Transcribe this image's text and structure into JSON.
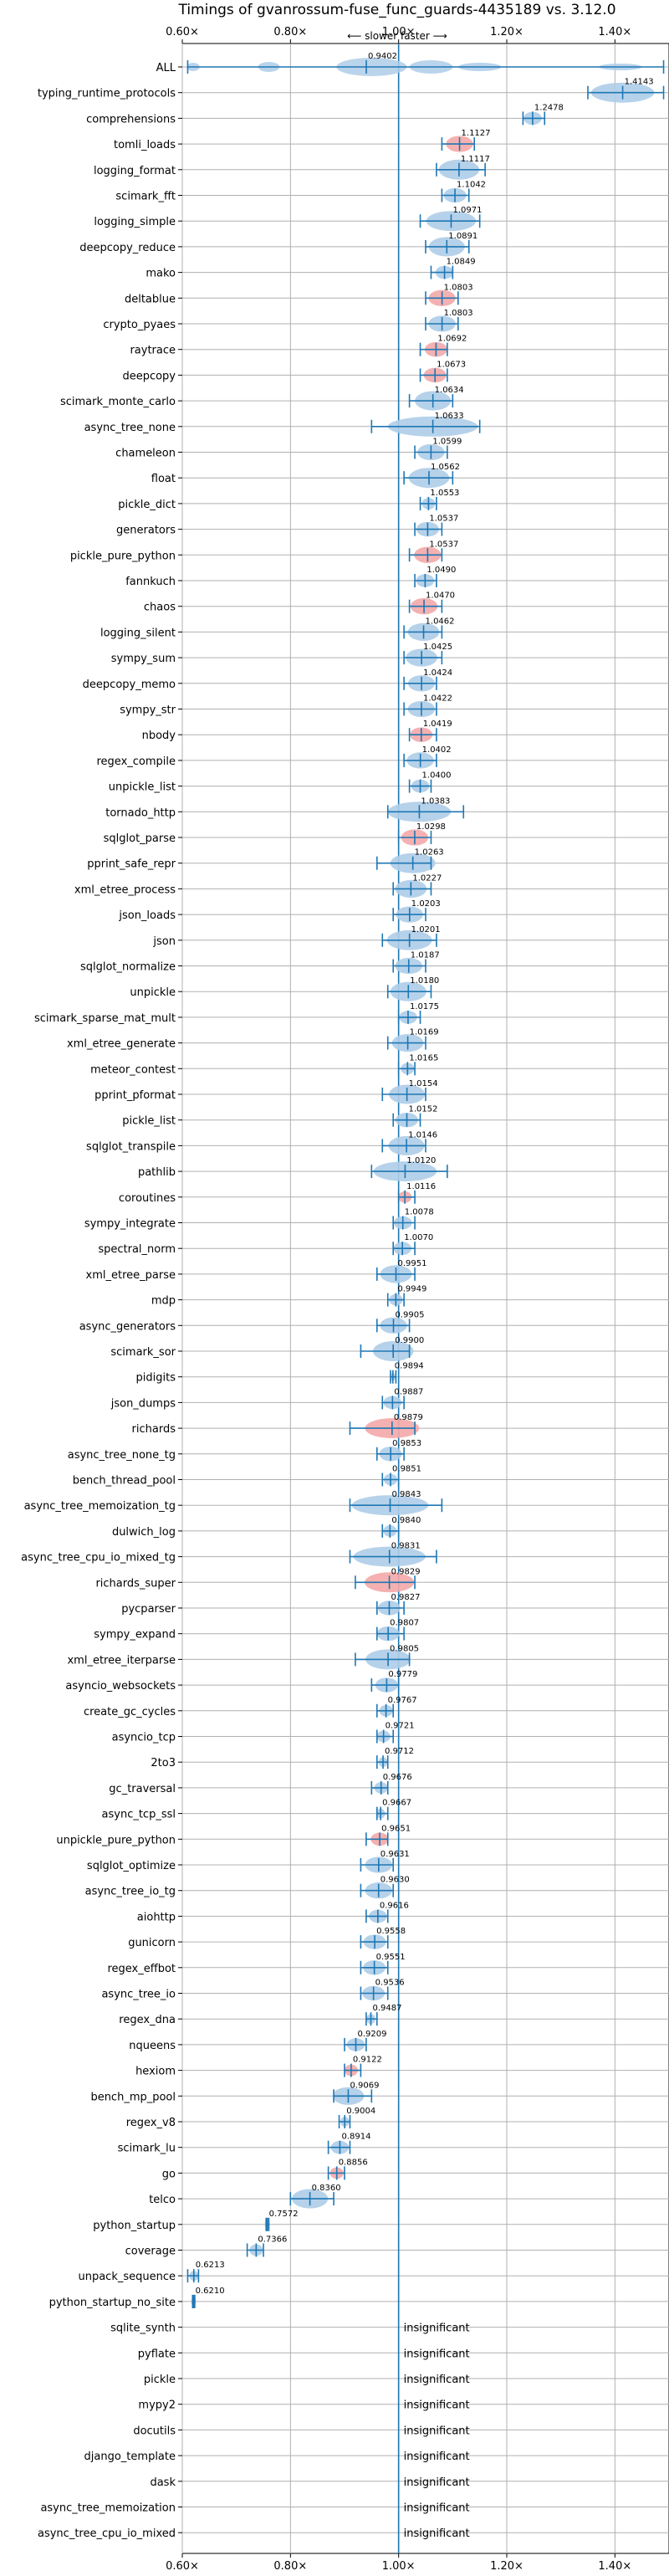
{
  "chart_data": {
    "type": "violin",
    "title": "Timings of gvanrossum-fuse_func_guards-4435189 vs. 3.12.0",
    "subtitle": "⟵ slower    faster ⟶",
    "xlim": [
      0.6,
      1.5
    ],
    "x_ticks": [
      0.6,
      0.8,
      1.0,
      1.2,
      1.4
    ],
    "x_tick_labels": [
      "0.60×",
      "0.80×",
      "1.00×",
      "1.20×",
      "1.40×"
    ],
    "reference_line": 1.0,
    "grid": true,
    "colors": {
      "faster": "#aecde8",
      "slower": "#f4a9a8",
      "accent": "#1f77b4",
      "grid": "#b0b0b0"
    },
    "insignificant_text": "insignificant",
    "benchmarks": [
      {
        "name": "ALL",
        "value": 0.9402,
        "low": 0.61,
        "high": 1.49,
        "type": "all",
        "label": "0.9402"
      },
      {
        "name": "typing_runtime_protocols",
        "value": 1.4143,
        "low": 1.35,
        "high": 1.49,
        "type": "faster",
        "label": "1.4143"
      },
      {
        "name": "comprehensions",
        "value": 1.2478,
        "low": 1.23,
        "high": 1.27,
        "type": "faster",
        "label": "1.2478"
      },
      {
        "name": "tomli_loads",
        "value": 1.1127,
        "low": 1.08,
        "high": 1.14,
        "type": "slower",
        "label": "1.1127"
      },
      {
        "name": "logging_format",
        "value": 1.1117,
        "low": 1.07,
        "high": 1.16,
        "type": "faster",
        "label": "1.1117"
      },
      {
        "name": "scimark_fft",
        "value": 1.1042,
        "low": 1.08,
        "high": 1.13,
        "type": "faster",
        "label": "1.1042"
      },
      {
        "name": "logging_simple",
        "value": 1.0971,
        "low": 1.04,
        "high": 1.15,
        "type": "faster",
        "label": "1.0971"
      },
      {
        "name": "deepcopy_reduce",
        "value": 1.0891,
        "low": 1.05,
        "high": 1.13,
        "type": "faster",
        "label": "1.0891"
      },
      {
        "name": "mako",
        "value": 1.0849,
        "low": 1.06,
        "high": 1.1,
        "type": "faster",
        "label": "1.0849"
      },
      {
        "name": "deltablue",
        "value": 1.0803,
        "low": 1.05,
        "high": 1.11,
        "type": "slower",
        "label": "1.0803"
      },
      {
        "name": "crypto_pyaes",
        "value": 1.0803,
        "low": 1.05,
        "high": 1.11,
        "type": "faster",
        "label": "1.0803"
      },
      {
        "name": "raytrace",
        "value": 1.0692,
        "low": 1.04,
        "high": 1.09,
        "type": "slower",
        "label": "1.0692"
      },
      {
        "name": "deepcopy",
        "value": 1.0673,
        "low": 1.04,
        "high": 1.09,
        "type": "slower",
        "label": "1.0673"
      },
      {
        "name": "scimark_monte_carlo",
        "value": 1.0634,
        "low": 1.02,
        "high": 1.1,
        "type": "faster",
        "label": "1.0634"
      },
      {
        "name": "async_tree_none",
        "value": 1.0633,
        "low": 0.95,
        "high": 1.15,
        "type": "faster",
        "label": "1.0633"
      },
      {
        "name": "chameleon",
        "value": 1.0599,
        "low": 1.03,
        "high": 1.09,
        "type": "faster",
        "label": "1.0599"
      },
      {
        "name": "float",
        "value": 1.0562,
        "low": 1.01,
        "high": 1.1,
        "type": "faster",
        "label": "1.0562"
      },
      {
        "name": "pickle_dict",
        "value": 1.0553,
        "low": 1.04,
        "high": 1.07,
        "type": "faster",
        "label": "1.0553"
      },
      {
        "name": "generators",
        "value": 1.0537,
        "low": 1.03,
        "high": 1.08,
        "type": "faster",
        "label": "1.0537"
      },
      {
        "name": "pickle_pure_python",
        "value": 1.0537,
        "low": 1.02,
        "high": 1.08,
        "type": "slower",
        "label": "1.0537"
      },
      {
        "name": "fannkuch",
        "value": 1.049,
        "low": 1.03,
        "high": 1.07,
        "type": "faster",
        "label": "1.0490"
      },
      {
        "name": "chaos",
        "value": 1.047,
        "low": 1.02,
        "high": 1.08,
        "type": "slower",
        "label": "1.0470"
      },
      {
        "name": "logging_silent",
        "value": 1.0462,
        "low": 1.01,
        "high": 1.08,
        "type": "faster",
        "label": "1.0462"
      },
      {
        "name": "sympy_sum",
        "value": 1.0425,
        "low": 1.01,
        "high": 1.08,
        "type": "faster",
        "label": "1.0425"
      },
      {
        "name": "deepcopy_memo",
        "value": 1.0424,
        "low": 1.01,
        "high": 1.07,
        "type": "faster",
        "label": "1.0424"
      },
      {
        "name": "sympy_str",
        "value": 1.0422,
        "low": 1.01,
        "high": 1.07,
        "type": "faster",
        "label": "1.0422"
      },
      {
        "name": "nbody",
        "value": 1.0419,
        "low": 1.02,
        "high": 1.07,
        "type": "slower",
        "label": "1.0419"
      },
      {
        "name": "regex_compile",
        "value": 1.0402,
        "low": 1.01,
        "high": 1.07,
        "type": "faster",
        "label": "1.0402"
      },
      {
        "name": "unpickle_list",
        "value": 1.04,
        "low": 1.02,
        "high": 1.06,
        "type": "faster",
        "label": "1.0400"
      },
      {
        "name": "tornado_http",
        "value": 1.0383,
        "low": 0.98,
        "high": 1.12,
        "type": "faster",
        "label": "1.0383"
      },
      {
        "name": "sqlglot_parse",
        "value": 1.0298,
        "low": 1.0,
        "high": 1.06,
        "type": "slower",
        "label": "1.0298"
      },
      {
        "name": "pprint_safe_repr",
        "value": 1.0263,
        "low": 0.96,
        "high": 1.06,
        "type": "faster",
        "label": "1.0263"
      },
      {
        "name": "xml_etree_process",
        "value": 1.0227,
        "low": 0.99,
        "high": 1.06,
        "type": "faster",
        "label": "1.0227"
      },
      {
        "name": "json_loads",
        "value": 1.0203,
        "low": 0.99,
        "high": 1.05,
        "type": "faster",
        "label": "1.0203"
      },
      {
        "name": "json",
        "value": 1.0201,
        "low": 0.97,
        "high": 1.07,
        "type": "faster",
        "label": "1.0201"
      },
      {
        "name": "sqlglot_normalize",
        "value": 1.0187,
        "low": 0.99,
        "high": 1.05,
        "type": "faster",
        "label": "1.0187"
      },
      {
        "name": "unpickle",
        "value": 1.018,
        "low": 0.98,
        "high": 1.06,
        "type": "faster",
        "label": "1.0180"
      },
      {
        "name": "scimark_sparse_mat_mult",
        "value": 1.0175,
        "low": 1.0,
        "high": 1.04,
        "type": "faster",
        "label": "1.0175"
      },
      {
        "name": "xml_etree_generate",
        "value": 1.0169,
        "low": 0.98,
        "high": 1.05,
        "type": "faster",
        "label": "1.0169"
      },
      {
        "name": "meteor_contest",
        "value": 1.0165,
        "low": 1.0,
        "high": 1.03,
        "type": "faster",
        "label": "1.0165"
      },
      {
        "name": "pprint_pformat",
        "value": 1.0154,
        "low": 0.97,
        "high": 1.05,
        "type": "faster",
        "label": "1.0154"
      },
      {
        "name": "pickle_list",
        "value": 1.0152,
        "low": 0.99,
        "high": 1.04,
        "type": "faster",
        "label": "1.0152"
      },
      {
        "name": "sqlglot_transpile",
        "value": 1.0146,
        "low": 0.97,
        "high": 1.05,
        "type": "faster",
        "label": "1.0146"
      },
      {
        "name": "pathlib",
        "value": 1.012,
        "low": 0.95,
        "high": 1.09,
        "type": "faster",
        "label": "1.0120"
      },
      {
        "name": "coroutines",
        "value": 1.0116,
        "low": 1.0,
        "high": 1.03,
        "type": "slower",
        "label": "1.0116"
      },
      {
        "name": "sympy_integrate",
        "value": 1.0078,
        "low": 0.99,
        "high": 1.03,
        "type": "faster",
        "label": "1.0078"
      },
      {
        "name": "spectral_norm",
        "value": 1.007,
        "low": 0.99,
        "high": 1.03,
        "type": "faster",
        "label": "1.0070"
      },
      {
        "name": "xml_etree_parse",
        "value": 0.9951,
        "low": 0.96,
        "high": 1.03,
        "type": "faster",
        "label": "0.9951"
      },
      {
        "name": "mdp",
        "value": 0.9949,
        "low": 0.98,
        "high": 1.01,
        "type": "faster",
        "label": "0.9949"
      },
      {
        "name": "async_generators",
        "value": 0.9905,
        "low": 0.96,
        "high": 1.02,
        "type": "faster",
        "label": "0.9905"
      },
      {
        "name": "scimark_sor",
        "value": 0.99,
        "low": 0.93,
        "high": 1.02,
        "type": "faster",
        "label": "0.9900"
      },
      {
        "name": "pidigits",
        "value": 0.9894,
        "low": 0.985,
        "high": 0.995,
        "type": "faster",
        "label": "0.9894"
      },
      {
        "name": "json_dumps",
        "value": 0.9887,
        "low": 0.97,
        "high": 1.01,
        "type": "faster",
        "label": "0.9887"
      },
      {
        "name": "richards",
        "value": 0.9879,
        "low": 0.91,
        "high": 1.03,
        "type": "slower",
        "label": "0.9879"
      },
      {
        "name": "async_tree_none_tg",
        "value": 0.9853,
        "low": 0.96,
        "high": 1.01,
        "type": "faster",
        "label": "0.9853"
      },
      {
        "name": "bench_thread_pool",
        "value": 0.9851,
        "low": 0.97,
        "high": 1.0,
        "type": "faster",
        "label": "0.9851"
      },
      {
        "name": "async_tree_memoization_tg",
        "value": 0.9843,
        "low": 0.91,
        "high": 1.08,
        "type": "faster",
        "label": "0.9843"
      },
      {
        "name": "dulwich_log",
        "value": 0.984,
        "low": 0.97,
        "high": 1.0,
        "type": "faster",
        "label": "0.9840"
      },
      {
        "name": "async_tree_cpu_io_mixed_tg",
        "value": 0.9831,
        "low": 0.91,
        "high": 1.07,
        "type": "faster",
        "label": "0.9831"
      },
      {
        "name": "richards_super",
        "value": 0.9829,
        "low": 0.92,
        "high": 1.03,
        "type": "slower",
        "label": "0.9829"
      },
      {
        "name": "pycparser",
        "value": 0.9827,
        "low": 0.96,
        "high": 1.01,
        "type": "faster",
        "label": "0.9827"
      },
      {
        "name": "sympy_expand",
        "value": 0.9807,
        "low": 0.96,
        "high": 1.01,
        "type": "faster",
        "label": "0.9807"
      },
      {
        "name": "xml_etree_iterparse",
        "value": 0.9805,
        "low": 0.92,
        "high": 1.02,
        "type": "faster",
        "label": "0.9805"
      },
      {
        "name": "asyncio_websockets",
        "value": 0.9779,
        "low": 0.95,
        "high": 1.0,
        "type": "faster",
        "label": "0.9779"
      },
      {
        "name": "create_gc_cycles",
        "value": 0.9767,
        "low": 0.96,
        "high": 0.99,
        "type": "faster",
        "label": "0.9767"
      },
      {
        "name": "asyncio_tcp",
        "value": 0.9721,
        "low": 0.96,
        "high": 0.99,
        "type": "faster",
        "label": "0.9721"
      },
      {
        "name": "2to3",
        "value": 0.9712,
        "low": 0.96,
        "high": 0.98,
        "type": "faster",
        "label": "0.9712"
      },
      {
        "name": "gc_traversal",
        "value": 0.9676,
        "low": 0.95,
        "high": 0.98,
        "type": "faster",
        "label": "0.9676"
      },
      {
        "name": "async_tcp_ssl",
        "value": 0.9667,
        "low": 0.96,
        "high": 0.98,
        "type": "faster",
        "label": "0.9667"
      },
      {
        "name": "unpickle_pure_python",
        "value": 0.9651,
        "low": 0.94,
        "high": 0.98,
        "type": "slower",
        "label": "0.9651"
      },
      {
        "name": "sqlglot_optimize",
        "value": 0.9631,
        "low": 0.93,
        "high": 0.99,
        "type": "faster",
        "label": "0.9631"
      },
      {
        "name": "async_tree_io_tg",
        "value": 0.963,
        "low": 0.93,
        "high": 0.99,
        "type": "faster",
        "label": "0.9630"
      },
      {
        "name": "aiohttp",
        "value": 0.9616,
        "low": 0.94,
        "high": 0.98,
        "type": "faster",
        "label": "0.9616"
      },
      {
        "name": "gunicorn",
        "value": 0.9558,
        "low": 0.93,
        "high": 0.98,
        "type": "faster",
        "label": "0.9558"
      },
      {
        "name": "regex_effbot",
        "value": 0.9551,
        "low": 0.93,
        "high": 0.98,
        "type": "faster",
        "label": "0.9551"
      },
      {
        "name": "async_tree_io",
        "value": 0.9536,
        "low": 0.93,
        "high": 0.98,
        "type": "faster",
        "label": "0.9536"
      },
      {
        "name": "regex_dna",
        "value": 0.9487,
        "low": 0.94,
        "high": 0.96,
        "type": "faster",
        "label": "0.9487"
      },
      {
        "name": "nqueens",
        "value": 0.9209,
        "low": 0.9,
        "high": 0.94,
        "type": "faster",
        "label": "0.9209"
      },
      {
        "name": "hexiom",
        "value": 0.9122,
        "low": 0.9,
        "high": 0.93,
        "type": "slower",
        "label": "0.9122"
      },
      {
        "name": "bench_mp_pool",
        "value": 0.9069,
        "low": 0.88,
        "high": 0.95,
        "type": "faster",
        "label": "0.9069"
      },
      {
        "name": "regex_v8",
        "value": 0.9004,
        "low": 0.89,
        "high": 0.91,
        "type": "faster",
        "label": "0.9004"
      },
      {
        "name": "scimark_lu",
        "value": 0.8914,
        "low": 0.87,
        "high": 0.91,
        "type": "faster",
        "label": "0.8914"
      },
      {
        "name": "go",
        "value": 0.8856,
        "low": 0.87,
        "high": 0.9,
        "type": "slower",
        "label": "0.8856"
      },
      {
        "name": "telco",
        "value": 0.836,
        "low": 0.8,
        "high": 0.88,
        "type": "faster",
        "label": "0.8360"
      },
      {
        "name": "python_startup",
        "value": 0.7572,
        "low": 0.755,
        "high": 0.76,
        "type": "faster",
        "label": "0.7572"
      },
      {
        "name": "coverage",
        "value": 0.7366,
        "low": 0.72,
        "high": 0.75,
        "type": "faster",
        "label": "0.7366"
      },
      {
        "name": "unpack_sequence",
        "value": 0.6213,
        "low": 0.61,
        "high": 0.63,
        "type": "faster",
        "label": "0.6213"
      },
      {
        "name": "python_startup_no_site",
        "value": 0.621,
        "low": 0.619,
        "high": 0.623,
        "type": "faster",
        "label": "0.6210"
      },
      {
        "name": "sqlite_synth",
        "type": "insignificant"
      },
      {
        "name": "pyflate",
        "type": "insignificant"
      },
      {
        "name": "pickle",
        "type": "insignificant"
      },
      {
        "name": "mypy2",
        "type": "insignificant"
      },
      {
        "name": "docutils",
        "type": "insignificant"
      },
      {
        "name": "django_template",
        "type": "insignificant"
      },
      {
        "name": "dask",
        "type": "insignificant"
      },
      {
        "name": "async_tree_memoization",
        "type": "insignificant"
      },
      {
        "name": "async_tree_cpu_io_mixed",
        "type": "insignificant"
      }
    ]
  }
}
